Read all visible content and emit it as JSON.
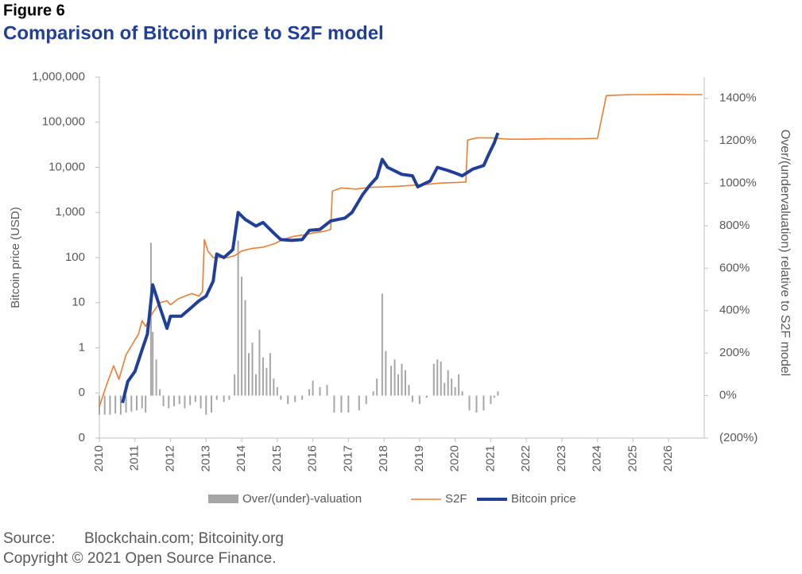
{
  "figure_label": "Figure 6",
  "chart_data": {
    "type": "line",
    "title": "Comparison of Bitcoin price to S2F model",
    "y_label": "Bitcoin price (USD)",
    "y2_label": "Over/(undervaluation) relative to S2F model",
    "log_y": true,
    "xlim": [
      2010,
      2027
    ],
    "xticks": [
      2010,
      2011,
      2012,
      2013,
      2014,
      2015,
      2016,
      2017,
      2018,
      2019,
      2020,
      2021,
      2022,
      2023,
      2024,
      2025,
      2026
    ],
    "ylim": [
      0.01,
      1000000
    ],
    "yticks": [
      {
        "value": 0.01,
        "label": "0"
      },
      {
        "value": 0.1,
        "label": "0"
      },
      1,
      10,
      100,
      {
        "value": 1000,
        "label": "1,000"
      },
      {
        "value": 10000,
        "label": "10,000"
      },
      {
        "value": 100000,
        "label": "100,000"
      },
      {
        "value": 1000000,
        "label": "1,000,000"
      }
    ],
    "y2lim": [
      -200,
      1500
    ],
    "y2ticks": [
      {
        "value": -200,
        "label": "(200%)"
      },
      {
        "value": 0,
        "label": "0%"
      },
      {
        "value": 200,
        "label": "200%"
      },
      {
        "value": 400,
        "label": "400%"
      },
      {
        "value": 600,
        "label": "600%"
      },
      {
        "value": 800,
        "label": "800%"
      },
      {
        "value": 1000,
        "label": "1000%"
      },
      {
        "value": 1200,
        "label": "1200%"
      },
      {
        "value": 1400,
        "label": "1400%"
      }
    ],
    "legend": "bottom",
    "series": [
      {
        "name": "Over/(under)-valuation",
        "type": "bar",
        "axis": "y2",
        "color": "#a6a6a6",
        "x": [
          2010.0,
          2010.15,
          2010.3,
          2010.45,
          2010.6,
          2010.75,
          2010.9,
          2011.05,
          2011.2,
          2011.3,
          2011.45,
          2011.5,
          2011.6,
          2011.7,
          2011.8,
          2011.95,
          2012.1,
          2012.25,
          2012.4,
          2012.55,
          2012.7,
          2012.85,
          2013.0,
          2013.15,
          2013.3,
          2013.5,
          2013.65,
          2013.8,
          2013.9,
          2014.0,
          2014.1,
          2014.2,
          2014.3,
          2014.4,
          2014.5,
          2014.6,
          2014.7,
          2014.8,
          2014.9,
          2015.0,
          2015.1,
          2015.3,
          2015.5,
          2015.7,
          2015.9,
          2016.0,
          2016.2,
          2016.4,
          2016.6,
          2016.8,
          2017.0,
          2017.3,
          2017.5,
          2017.7,
          2017.8,
          2017.95,
          2018.05,
          2018.2,
          2018.3,
          2018.4,
          2018.5,
          2018.6,
          2018.7,
          2018.8,
          2019.0,
          2019.2,
          2019.4,
          2019.5,
          2019.6,
          2019.7,
          2019.8,
          2019.9,
          2020.0,
          2020.1,
          2020.2,
          2020.4,
          2020.6,
          2020.8,
          2021.0,
          2021.1,
          2021.2
        ],
        "values": [
          -90,
          -90,
          -90,
          -85,
          -90,
          -80,
          -75,
          -70,
          -60,
          -80,
          720,
          300,
          170,
          30,
          -50,
          -60,
          -50,
          -40,
          -60,
          -45,
          -30,
          -60,
          -90,
          -80,
          -20,
          -30,
          -20,
          100,
          730,
          560,
          450,
          200,
          250,
          100,
          310,
          180,
          130,
          200,
          80,
          40,
          -20,
          -40,
          -30,
          -20,
          30,
          70,
          40,
          50,
          -80,
          -80,
          -80,
          -70,
          -40,
          20,
          80,
          480,
          210,
          140,
          170,
          100,
          150,
          120,
          50,
          -30,
          -40,
          -10,
          150,
          170,
          160,
          60,
          120,
          80,
          40,
          100,
          20,
          -70,
          -80,
          -70,
          -40,
          -10,
          20
        ]
      },
      {
        "name": "S2F",
        "color": "#ed7d31",
        "x": [
          2010.0,
          2010.2,
          2010.4,
          2010.55,
          2010.75,
          2011.0,
          2011.1,
          2011.2,
          2011.3,
          2011.5,
          2011.7,
          2011.9,
          2012.0,
          2012.2,
          2012.4,
          2012.6,
          2012.8,
          2012.9,
          2012.95,
          2013.05,
          2013.2,
          2013.4,
          2013.6,
          2013.8,
          2014.0,
          2014.3,
          2014.6,
          2014.9,
          2015.2,
          2015.5,
          2015.8,
          2016.0,
          2016.3,
          2016.5,
          2016.55,
          2016.8,
          2017.2,
          2017.6,
          2018.0,
          2018.4,
          2018.8,
          2019.2,
          2019.6,
          2020.0,
          2020.3,
          2020.35,
          2020.6,
          2021.0,
          2021.5,
          2022.0,
          2022.5,
          2023.0,
          2023.5,
          2024.0,
          2024.25,
          2024.6,
          2025.0,
          2025.5,
          2026.0,
          2026.5,
          2026.95
        ],
        "values": [
          0.05,
          0.15,
          0.4,
          0.2,
          0.7,
          1.5,
          2,
          4,
          3,
          6,
          10,
          11,
          9,
          12,
          14,
          16,
          14,
          18,
          250,
          140,
          100,
          100,
          100,
          110,
          140,
          160,
          170,
          200,
          260,
          300,
          320,
          350,
          380,
          420,
          3000,
          3500,
          3300,
          3600,
          3700,
          3800,
          4000,
          4200,
          4500,
          4600,
          4700,
          40000,
          45000,
          45000,
          42000,
          42000,
          43000,
          43000,
          43000,
          44000,
          390000,
          400000,
          410000,
          410000,
          415000,
          410000,
          410000
        ]
      },
      {
        "name": "Bitcoin price",
        "color": "#1f3f99",
        "x": [
          2010.65,
          2010.8,
          2011.0,
          2011.2,
          2011.35,
          2011.5,
          2011.7,
          2011.9,
          2012.0,
          2012.3,
          2012.6,
          2012.8,
          2013.0,
          2013.2,
          2013.3,
          2013.5,
          2013.75,
          2013.9,
          2014.1,
          2014.4,
          2014.6,
          2014.9,
          2015.1,
          2015.4,
          2015.7,
          2015.9,
          2016.2,
          2016.5,
          2016.9,
          2017.1,
          2017.4,
          2017.6,
          2017.8,
          2017.95,
          2018.1,
          2018.5,
          2018.8,
          2018.95,
          2019.3,
          2019.5,
          2019.8,
          2020.0,
          2020.2,
          2020.5,
          2020.8,
          2020.95,
          2021.1,
          2021.2
        ],
        "values": [
          0.06,
          0.18,
          0.3,
          0.9,
          2,
          25,
          8,
          2.7,
          5,
          5,
          8,
          11,
          14,
          30,
          120,
          100,
          150,
          1000,
          700,
          500,
          600,
          350,
          250,
          240,
          250,
          400,
          420,
          650,
          750,
          1000,
          2500,
          4000,
          6000,
          15000,
          10000,
          7000,
          6500,
          3700,
          5000,
          10000,
          8500,
          7500,
          6500,
          9200,
          11000,
          20000,
          35000,
          58000
        ]
      }
    ]
  },
  "source_label": "Source:",
  "source": "Blockchain.com; Bitcoinity.org",
  "copyright": "Copyright © 2021 Open Source Finance."
}
